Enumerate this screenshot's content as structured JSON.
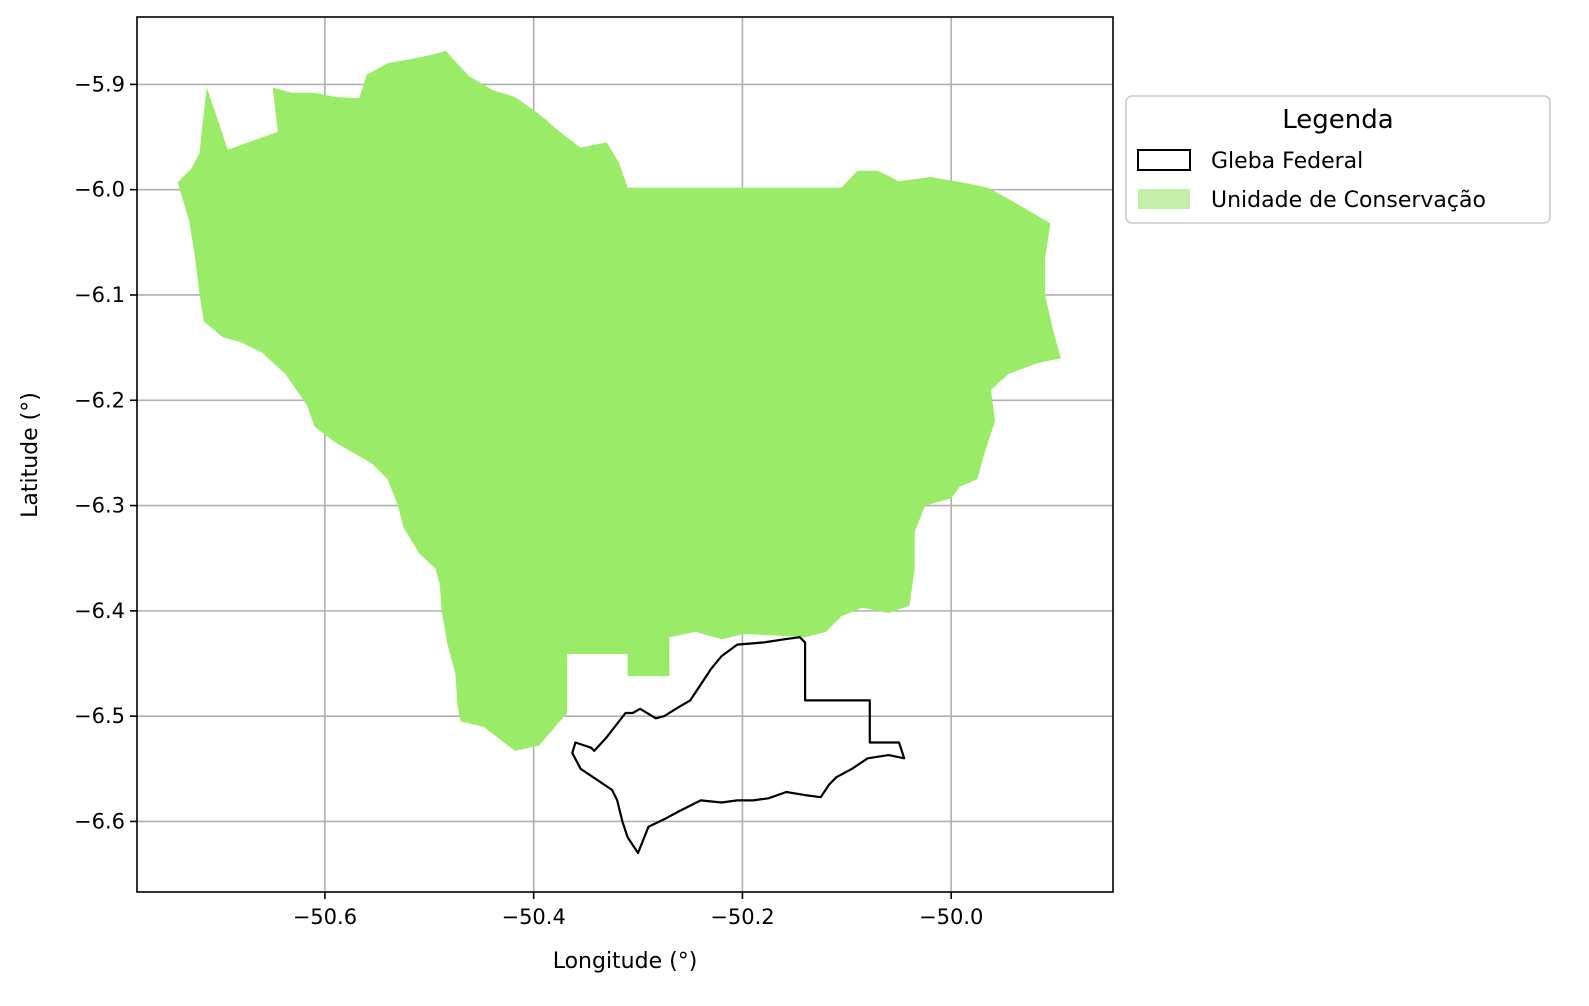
{
  "axes": {
    "xlabel": "Longitude (°)",
    "ylabel": "Latitude (°)",
    "xticks": [
      {
        "value": -50.6,
        "label": "−50.6"
      },
      {
        "value": -50.4,
        "label": "−50.4"
      },
      {
        "value": -50.2,
        "label": "−50.2"
      },
      {
        "value": -50.0,
        "label": "−50.0"
      }
    ],
    "yticks": [
      {
        "value": -5.9,
        "label": "−5.9"
      },
      {
        "value": -6.0,
        "label": "−6.0"
      },
      {
        "value": -6.1,
        "label": "−6.1"
      },
      {
        "value": -6.2,
        "label": "−6.2"
      },
      {
        "value": -6.3,
        "label": "−6.3"
      },
      {
        "value": -6.4,
        "label": "−6.4"
      },
      {
        "value": -6.5,
        "label": "−6.5"
      },
      {
        "value": -6.6,
        "label": "−6.6"
      }
    ],
    "xlim": [
      -50.78,
      -49.845
    ],
    "ylim": [
      -6.667,
      -5.836
    ],
    "grid": true
  },
  "legend": {
    "title": "Legenda",
    "items": [
      {
        "label": "Gleba Federal",
        "style": "outline",
        "color": "#000000"
      },
      {
        "label": "Unidade de Conservação",
        "style": "fill",
        "color": "#c3efa9"
      }
    ]
  },
  "colors": {
    "conservation_fill": "#9aeb68",
    "gleba_stroke": "#000000",
    "grid": "#b0b0b0"
  },
  "layers": {
    "unidade_de_conservacao": [
      [
        -50.741,
        -5.993
      ],
      [
        -50.73,
        -6.03
      ],
      [
        -50.725,
        -6.06
      ],
      [
        -50.72,
        -6.1
      ],
      [
        -50.716,
        -6.125
      ],
      [
        -50.698,
        -6.14
      ],
      [
        -50.68,
        -6.145
      ],
      [
        -50.66,
        -6.155
      ],
      [
        -50.638,
        -6.175
      ],
      [
        -50.617,
        -6.205
      ],
      [
        -50.61,
        -6.225
      ],
      [
        -50.59,
        -6.24
      ],
      [
        -50.555,
        -6.26
      ],
      [
        -50.54,
        -6.275
      ],
      [
        -50.53,
        -6.3
      ],
      [
        -50.525,
        -6.32
      ],
      [
        -50.51,
        -6.345
      ],
      [
        -50.494,
        -6.36
      ],
      [
        -50.49,
        -6.375
      ],
      [
        -50.488,
        -6.4
      ],
      [
        -50.483,
        -6.43
      ],
      [
        -50.475,
        -6.46
      ],
      [
        -50.473,
        -6.49
      ],
      [
        -50.47,
        -6.505
      ],
      [
        -50.448,
        -6.51
      ],
      [
        -50.418,
        -6.533
      ],
      [
        -50.395,
        -6.528
      ],
      [
        -50.368,
        -6.497
      ],
      [
        -50.368,
        -6.441
      ],
      [
        -50.31,
        -6.441
      ],
      [
        -50.31,
        -6.462
      ],
      [
        -50.27,
        -6.462
      ],
      [
        -50.27,
        -6.425
      ],
      [
        -50.245,
        -6.42
      ],
      [
        -50.22,
        -6.427
      ],
      [
        -50.198,
        -6.422
      ],
      [
        -50.175,
        -6.423
      ],
      [
        -50.14,
        -6.425
      ],
      [
        -50.12,
        -6.42
      ],
      [
        -50.105,
        -6.405
      ],
      [
        -50.085,
        -6.397
      ],
      [
        -50.06,
        -6.402
      ],
      [
        -50.04,
        -6.395
      ],
      [
        -50.035,
        -6.36
      ],
      [
        -50.035,
        -6.325
      ],
      [
        -50.025,
        -6.3
      ],
      [
        -50.0,
        -6.293
      ],
      [
        -49.992,
        -6.282
      ],
      [
        -49.975,
        -6.275
      ],
      [
        -49.968,
        -6.25
      ],
      [
        -49.958,
        -6.22
      ],
      [
        -49.962,
        -6.19
      ],
      [
        -49.945,
        -6.175
      ],
      [
        -49.918,
        -6.165
      ],
      [
        -49.895,
        -6.16
      ],
      [
        -49.902,
        -6.135
      ],
      [
        -49.91,
        -6.1
      ],
      [
        -49.91,
        -6.065
      ],
      [
        -49.905,
        -6.032
      ],
      [
        -49.943,
        -6.01
      ],
      [
        -49.965,
        -5.998
      ],
      [
        -49.99,
        -5.993
      ],
      [
        -50.02,
        -5.988
      ],
      [
        -50.05,
        -5.992
      ],
      [
        -50.07,
        -5.982
      ],
      [
        -50.09,
        -5.982
      ],
      [
        -50.105,
        -5.998
      ],
      [
        -50.31,
        -5.998
      ],
      [
        -50.318,
        -5.975
      ],
      [
        -50.33,
        -5.955
      ],
      [
        -50.355,
        -5.96
      ],
      [
        -50.375,
        -5.945
      ],
      [
        -50.395,
        -5.928
      ],
      [
        -50.418,
        -5.912
      ],
      [
        -50.44,
        -5.905
      ],
      [
        -50.462,
        -5.892
      ],
      [
        -50.478,
        -5.875
      ],
      [
        -50.484,
        -5.868
      ],
      [
        -50.498,
        -5.872
      ],
      [
        -50.518,
        -5.876
      ],
      [
        -50.54,
        -5.88
      ],
      [
        -50.56,
        -5.891
      ],
      [
        -50.567,
        -5.913
      ],
      [
        -50.59,
        -5.912
      ],
      [
        -50.61,
        -5.908
      ],
      [
        -50.632,
        -5.908
      ],
      [
        -50.65,
        -5.903
      ],
      [
        -50.645,
        -5.945
      ],
      [
        -50.693,
        -5.962
      ],
      [
        -50.713,
        -5.903
      ],
      [
        -50.717,
        -5.935
      ],
      [
        -50.72,
        -5.965
      ],
      [
        -50.728,
        -5.98
      ]
    ],
    "gleba_federal": [
      [
        -50.305,
        -6.497
      ],
      [
        -50.298,
        -6.493
      ],
      [
        -50.283,
        -6.502
      ],
      [
        -50.275,
        -6.5
      ],
      [
        -50.262,
        -6.492
      ],
      [
        -50.25,
        -6.485
      ],
      [
        -50.24,
        -6.47
      ],
      [
        -50.23,
        -6.455
      ],
      [
        -50.22,
        -6.443
      ],
      [
        -50.205,
        -6.432
      ],
      [
        -50.18,
        -6.43
      ],
      [
        -50.16,
        -6.427
      ],
      [
        -50.145,
        -6.425
      ],
      [
        -50.14,
        -6.43
      ],
      [
        -50.14,
        -6.485
      ],
      [
        -50.078,
        -6.485
      ],
      [
        -50.078,
        -6.525
      ],
      [
        -50.05,
        -6.525
      ],
      [
        -50.045,
        -6.54
      ],
      [
        -50.06,
        -6.537
      ],
      [
        -50.08,
        -6.54
      ],
      [
        -50.095,
        -6.55
      ],
      [
        -50.11,
        -6.558
      ],
      [
        -50.117,
        -6.565
      ],
      [
        -50.125,
        -6.577
      ],
      [
        -50.14,
        -6.575
      ],
      [
        -50.158,
        -6.572
      ],
      [
        -50.175,
        -6.578
      ],
      [
        -50.19,
        -6.58
      ],
      [
        -50.205,
        -6.58
      ],
      [
        -50.22,
        -6.582
      ],
      [
        -50.24,
        -6.58
      ],
      [
        -50.26,
        -6.59
      ],
      [
        -50.275,
        -6.598
      ],
      [
        -50.29,
        -6.605
      ],
      [
        -50.3,
        -6.63
      ],
      [
        -50.31,
        -6.615
      ],
      [
        -50.315,
        -6.6
      ],
      [
        -50.32,
        -6.58
      ],
      [
        -50.325,
        -6.57
      ],
      [
        -50.34,
        -6.56
      ],
      [
        -50.355,
        -6.55
      ],
      [
        -50.363,
        -6.535
      ],
      [
        -50.36,
        -6.525
      ],
      [
        -50.345,
        -6.53
      ],
      [
        -50.342,
        -6.533
      ],
      [
        -50.33,
        -6.52
      ],
      [
        -50.312,
        -6.497
      ]
    ]
  }
}
